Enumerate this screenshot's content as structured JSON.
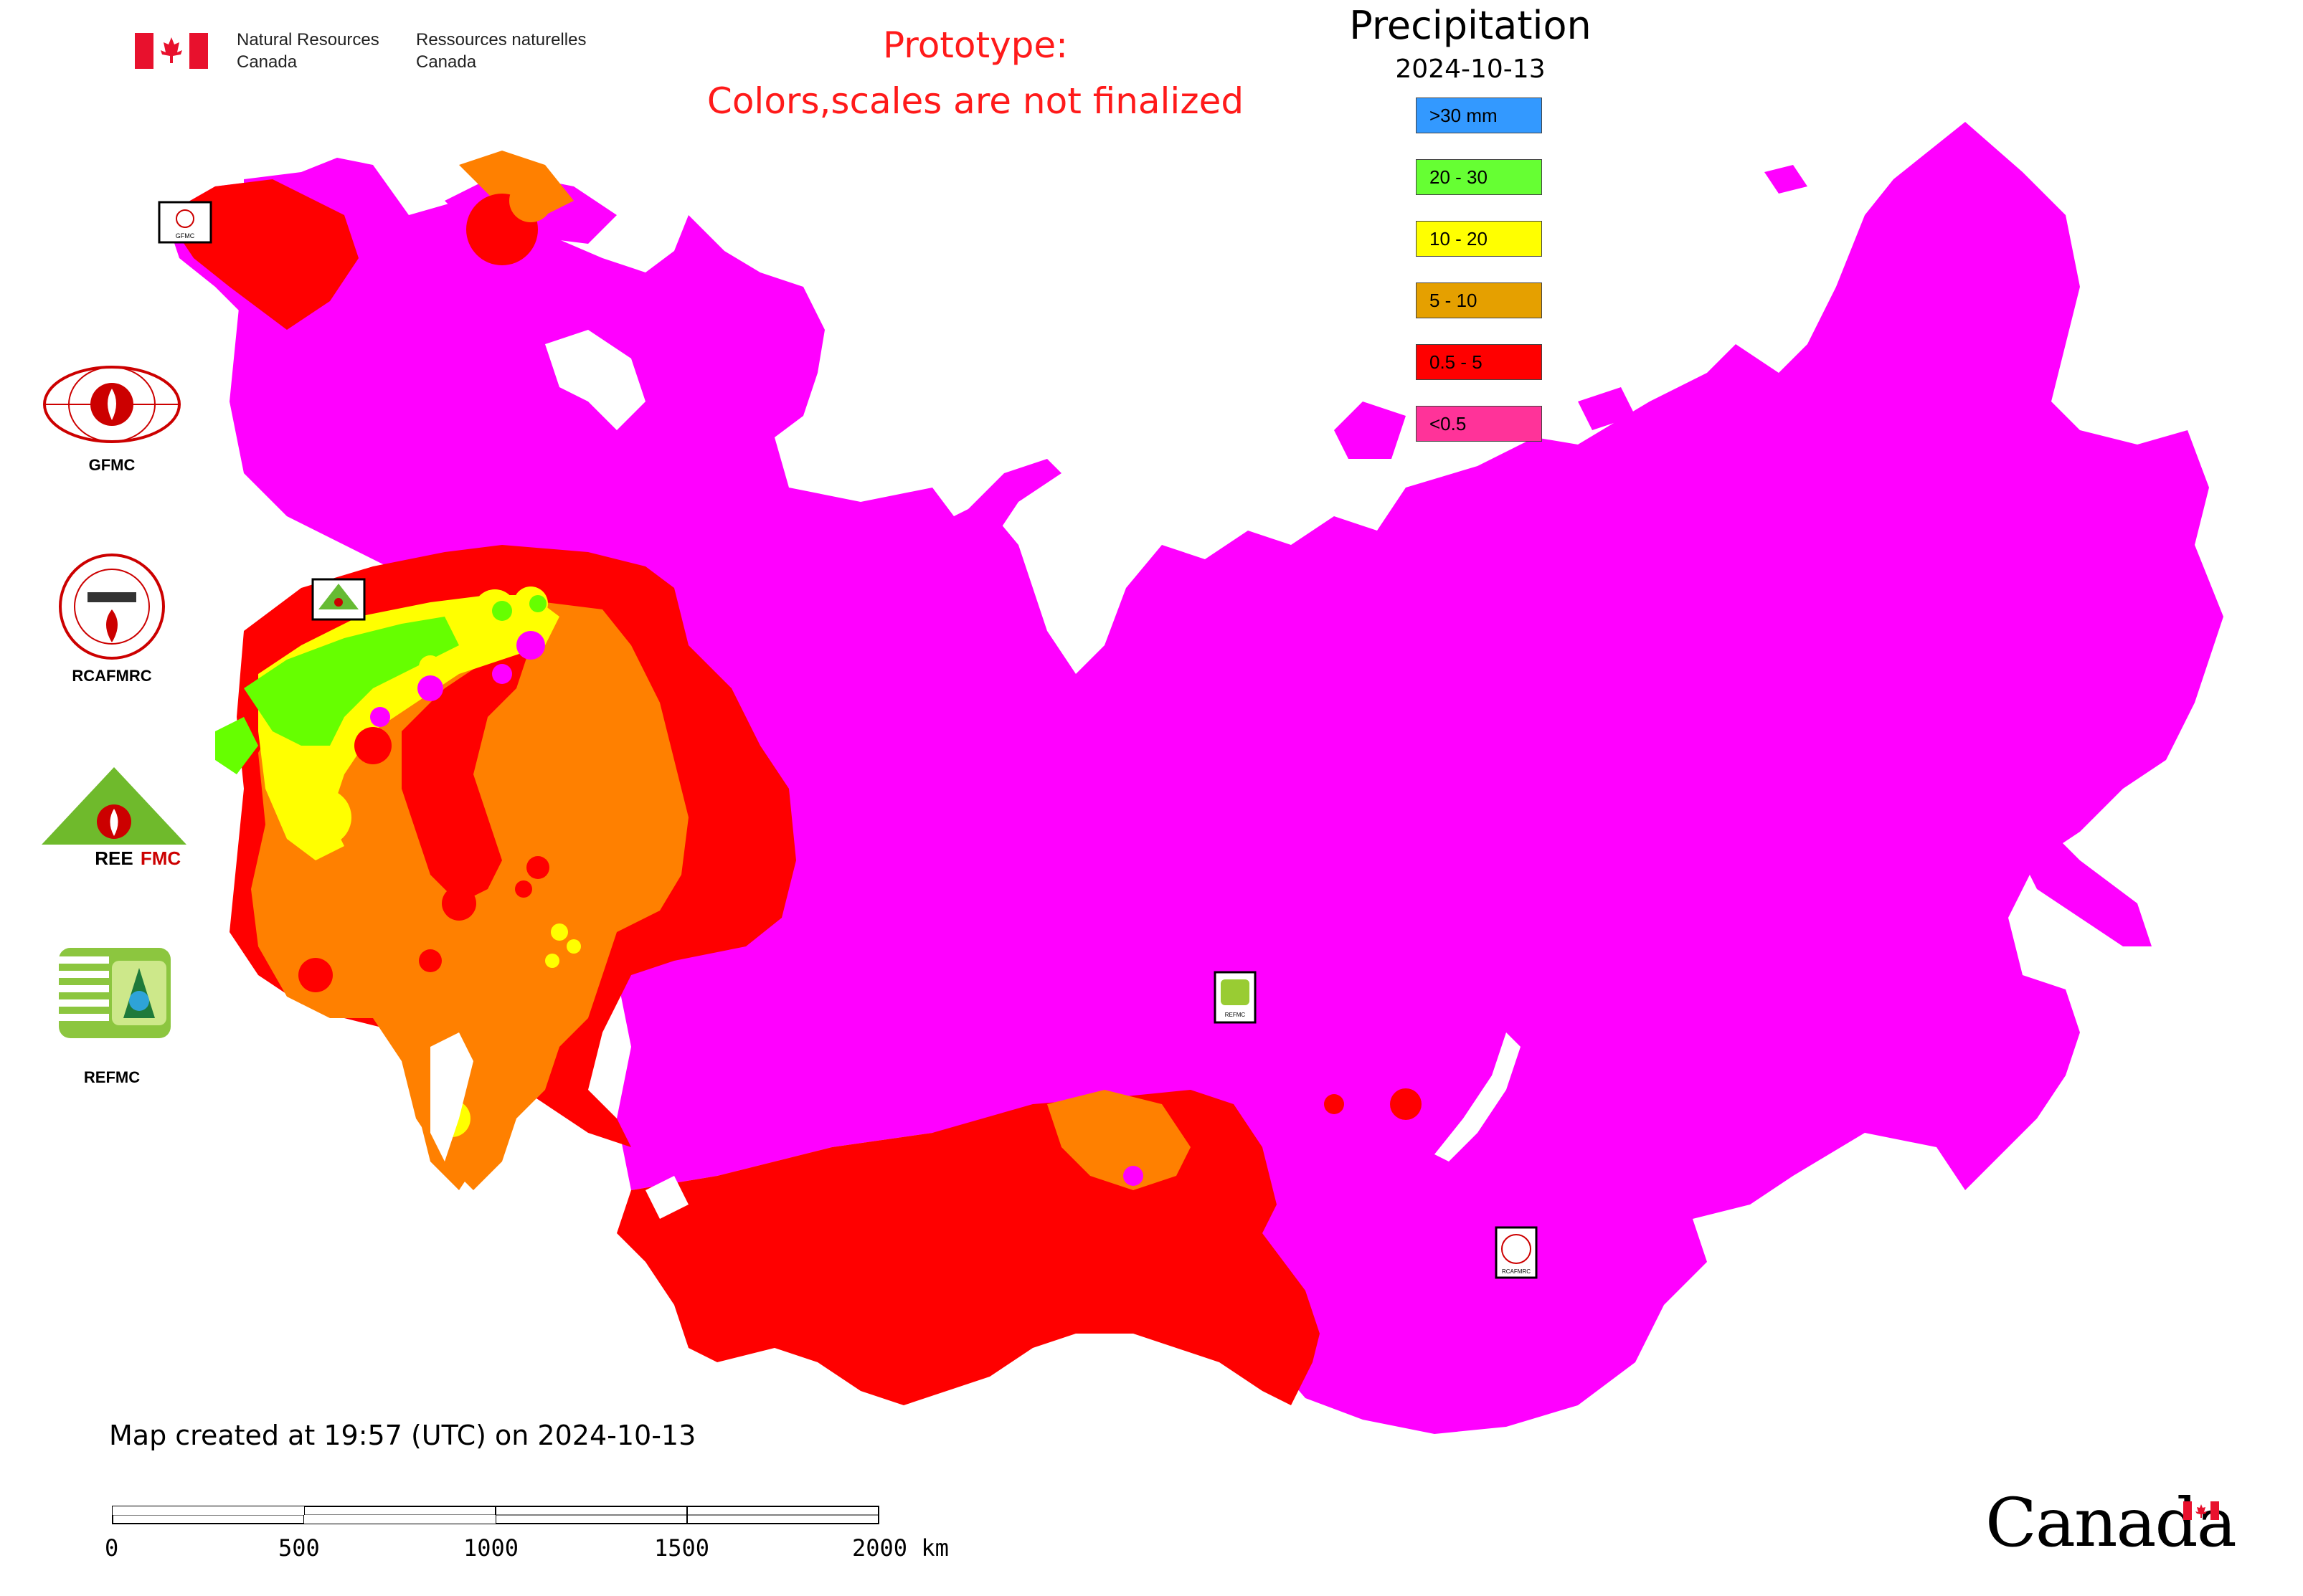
{
  "header": {
    "agency_en_line1": "Natural Resources",
    "agency_en_line2": "Canada",
    "agency_fr_line1": "Ressources naturelles",
    "agency_fr_line2": "Canada",
    "prototype_line1": "Prototype:",
    "prototype_line2": "Colors,scales are not finalized"
  },
  "legend": {
    "title": "Precipitation",
    "date": "2024-10-13",
    "items": [
      {
        "label": ">30 mm",
        "color": "#3399ff"
      },
      {
        "label": "20 - 30",
        "color": "#66ff33"
      },
      {
        "label": "10 - 20",
        "color": "#ffff00"
      },
      {
        "label": "5 - 10",
        "color": "#e5a000"
      },
      {
        "label": "0.5 - 5",
        "color": "#ff0000"
      },
      {
        "label": "<0.5",
        "color": "#ff3399"
      }
    ]
  },
  "map_colors": {
    "dominant": "#ff00ff",
    "red": "#ff0000",
    "orange": "#ff8000",
    "yellow": "#ffff00",
    "green": "#66ff00"
  },
  "organizations": [
    {
      "label": "GFMC",
      "icon": "gfmc-logo"
    },
    {
      "label": "RCAFMRC",
      "icon": "rcafmrc-logo"
    },
    {
      "label": "REEFMC",
      "icon": "reefmc-logo"
    },
    {
      "label": "REFMC",
      "icon": "refmc-logo"
    }
  ],
  "footer": {
    "created": "Map created at 19:57 (UTC) on 2024-10-13",
    "scale_labels": [
      "0",
      "500",
      "1000",
      "1500",
      "2000 km"
    ],
    "wordmark": "Canada"
  }
}
